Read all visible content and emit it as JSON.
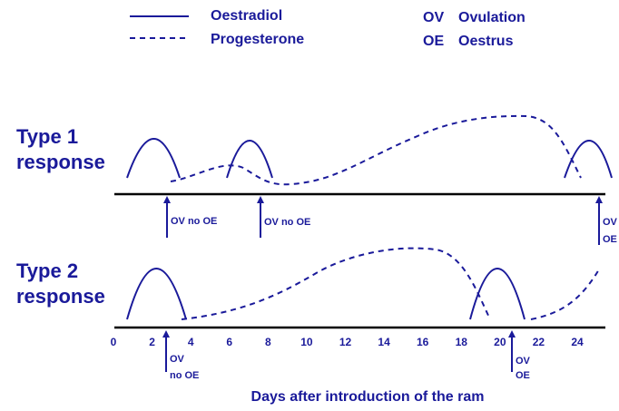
{
  "legend": {
    "oestradiol": "Oestradiol",
    "progesterone": "Progesterone",
    "ovulation_abbr": "OV",
    "ovulation": "Ovulation",
    "oestrus_abbr": "OE",
    "oestrus": "Oestrus"
  },
  "rows": [
    {
      "label": [
        "Type 1",
        "response"
      ],
      "annotations": [
        [
          "OV no OE"
        ],
        [
          "OV no OE"
        ],
        [
          "OV",
          "OE"
        ]
      ]
    },
    {
      "label": [
        "Type 2",
        "response"
      ],
      "annotations": [
        [
          "OV",
          "no OE"
        ],
        [
          "OV",
          "OE"
        ]
      ]
    }
  ],
  "axis": {
    "ticks": [
      0,
      2,
      4,
      6,
      8,
      10,
      12,
      14,
      16,
      18,
      20,
      22,
      24
    ],
    "title": "Days after introduction of the ram"
  }
}
